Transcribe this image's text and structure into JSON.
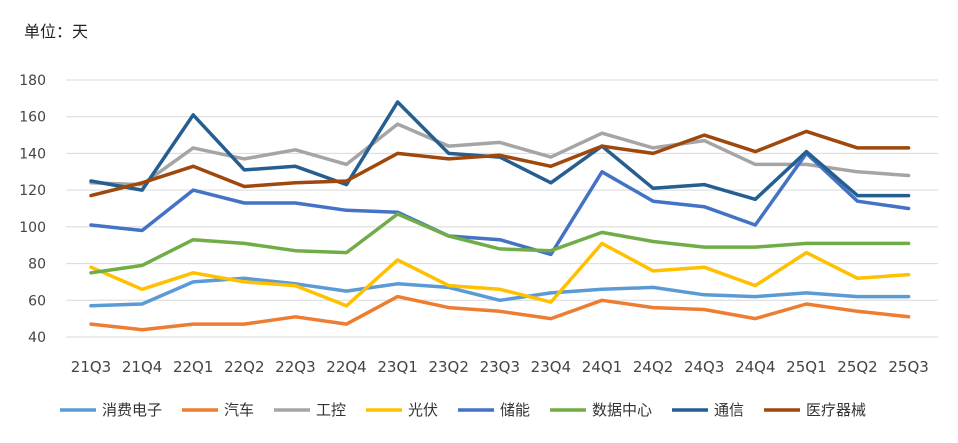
{
  "chart_data": {
    "type": "line",
    "unit_label": "单位：天",
    "categories": [
      "21Q3",
      "21Q4",
      "22Q1",
      "22Q2",
      "22Q3",
      "22Q4",
      "23Q1",
      "23Q2",
      "23Q3",
      "23Q4",
      "24Q1",
      "24Q2",
      "24Q3",
      "24Q4",
      "25Q1",
      "25Q2",
      "25Q3"
    ],
    "ylim": [
      40,
      180
    ],
    "yticks": [
      40,
      60,
      80,
      100,
      120,
      140,
      160,
      180
    ],
    "grid": true,
    "legend_position": "bottom",
    "series": [
      {
        "name": "消费电子",
        "color": "#5b9bd5",
        "values": [
          57,
          58,
          70,
          72,
          69,
          65,
          69,
          67,
          60,
          64,
          66,
          67,
          63,
          62,
          64,
          62,
          62
        ]
      },
      {
        "name": "汽车",
        "color": "#ed7d31",
        "values": [
          47,
          44,
          47,
          47,
          51,
          47,
          62,
          56,
          54,
          50,
          60,
          56,
          55,
          50,
          58,
          54,
          51
        ]
      },
      {
        "name": "工控",
        "color": "#a5a5a5",
        "values": [
          124,
          123,
          143,
          137,
          142,
          134,
          156,
          144,
          146,
          138,
          151,
          143,
          147,
          134,
          134,
          130,
          128
        ]
      },
      {
        "name": "光伏",
        "color": "#ffc000",
        "values": [
          78,
          66,
          75,
          70,
          68,
          57,
          82,
          68,
          66,
          59,
          91,
          76,
          78,
          68,
          86,
          72,
          74
        ]
      },
      {
        "name": "储能",
        "color": "#4472c4",
        "values": [
          101,
          98,
          120,
          113,
          113,
          109,
          108,
          95,
          93,
          85,
          130,
          114,
          111,
          101,
          140,
          114,
          110
        ]
      },
      {
        "name": "数据中心",
        "color": "#70ad47",
        "values": [
          75,
          79,
          93,
          91,
          87,
          86,
          107,
          95,
          88,
          87,
          97,
          92,
          89,
          89,
          91,
          91,
          91
        ]
      },
      {
        "name": "通信",
        "color": "#255e91",
        "values": [
          125,
          120,
          161,
          131,
          133,
          123,
          168,
          140,
          138,
          124,
          144,
          121,
          123,
          115,
          141,
          117,
          117
        ]
      },
      {
        "name": "医疗器械",
        "color": "#9e480e",
        "values": [
          117,
          124,
          133,
          122,
          124,
          125,
          140,
          137,
          139,
          133,
          144,
          140,
          150,
          141,
          152,
          143,
          143
        ]
      }
    ]
  }
}
